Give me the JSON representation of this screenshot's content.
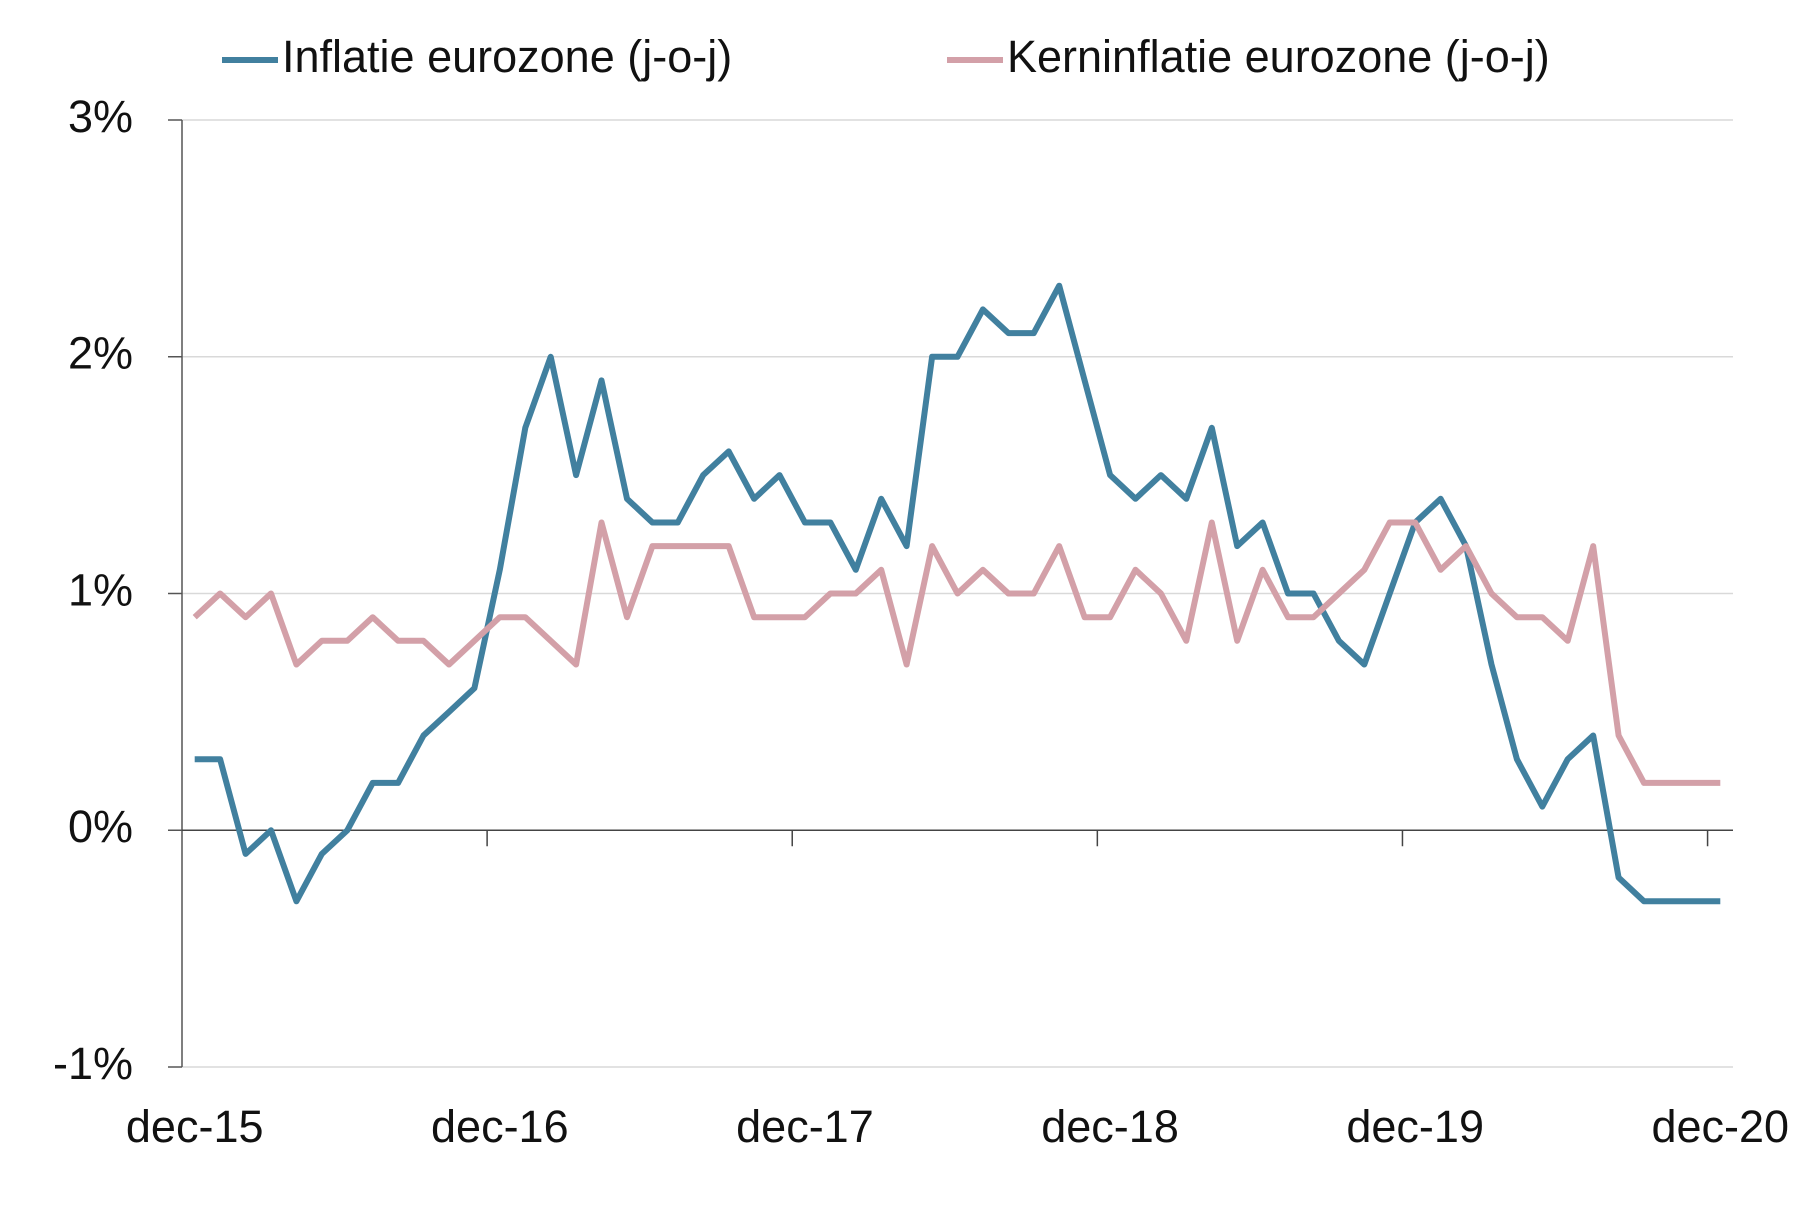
{
  "chart_data": {
    "type": "line",
    "categories": [
      "dec-15",
      null,
      null,
      null,
      null,
      null,
      null,
      null,
      null,
      null,
      null,
      null,
      "dec-16",
      null,
      null,
      null,
      null,
      null,
      null,
      null,
      null,
      null,
      null,
      null,
      "dec-17",
      null,
      null,
      null,
      null,
      null,
      null,
      null,
      null,
      null,
      null,
      null,
      "dec-18",
      null,
      null,
      null,
      null,
      null,
      null,
      null,
      null,
      null,
      null,
      null,
      "dec-19",
      null,
      null,
      null,
      null,
      null,
      null,
      null,
      null,
      null,
      null,
      null,
      "dec-20"
    ],
    "series": [
      {
        "name": "Inflatie eurozone (j-o-j)",
        "color": "#41809f",
        "values": [
          0.3,
          0.3,
          -0.1,
          0,
          -0.3,
          -0.1,
          0,
          0.2,
          0.2,
          0.4,
          0.5,
          0.6,
          1.1,
          1.7,
          2.0,
          1.5,
          1.9,
          1.4,
          1.3,
          1.3,
          1.5,
          1.6,
          1.4,
          1.5,
          1.3,
          1.3,
          1.1,
          1.4,
          1.2,
          2.0,
          2.0,
          2.2,
          2.1,
          2.1,
          2.3,
          1.9,
          1.5,
          1.4,
          1.5,
          1.4,
          1.7,
          1.2,
          1.3,
          1.0,
          1.0,
          0.8,
          0.7,
          1.0,
          1.3,
          1.4,
          1.2,
          0.7,
          0.3,
          0.1,
          0.3,
          0.4,
          -0.2,
          -0.3,
          -0.3,
          -0.3,
          -0.3
        ]
      },
      {
        "name": "Kerninflatie eurozone (j-o-j)",
        "color": "#d3a0a8",
        "values": [
          0.9,
          1.0,
          0.9,
          1.0,
          0.7,
          0.8,
          0.8,
          0.9,
          0.8,
          0.8,
          0.7,
          0.8,
          0.9,
          0.9,
          0.8,
          0.7,
          1.3,
          0.9,
          1.2,
          1.2,
          1.2,
          1.2,
          0.9,
          0.9,
          0.9,
          1.0,
          1.0,
          1.1,
          0.7,
          1.2,
          1.0,
          1.1,
          1.0,
          1.0,
          1.2,
          0.9,
          0.9,
          1.1,
          1.0,
          0.8,
          1.3,
          0.8,
          1.1,
          0.9,
          0.9,
          1.0,
          1.1,
          1.3,
          1.3,
          1.1,
          1.2,
          1.0,
          0.9,
          0.9,
          0.8,
          1.2,
          0.4,
          0.2,
          0.2,
          0.2,
          0.2
        ]
      }
    ],
    "ylim": [
      -1,
      3
    ],
    "yticks": [
      {
        "value": -1,
        "label": "-1%"
      },
      {
        "value": 0,
        "label": "0%"
      },
      {
        "value": 1,
        "label": "1%"
      },
      {
        "value": 2,
        "label": "2%"
      },
      {
        "value": 3,
        "label": "3%"
      }
    ],
    "grid": true,
    "legend": "top"
  }
}
